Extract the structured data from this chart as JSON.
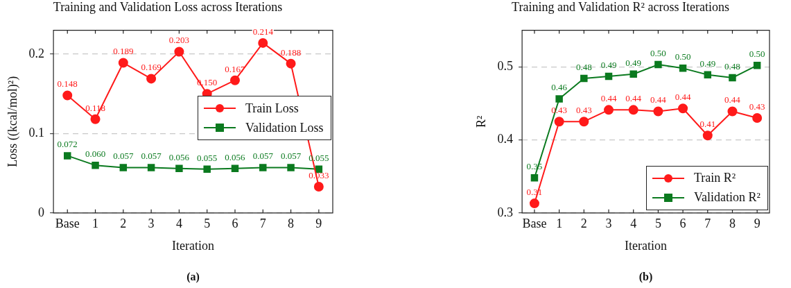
{
  "chart_data": [
    {
      "type": "line",
      "title": "Training and Validation Loss across Iterations",
      "xlabel": "Iteration",
      "ylabel": "Loss ((kcal/mol)²)",
      "categories": [
        "Base",
        "1",
        "2",
        "3",
        "4",
        "5",
        "6",
        "7",
        "8",
        "9"
      ],
      "series": [
        {
          "name": "Train Loss",
          "color": "#ff1a1a",
          "marker": "circle",
          "values": [
            0.148,
            0.118,
            0.189,
            0.169,
            0.203,
            0.15,
            0.167,
            0.214,
            0.188,
            0.033
          ],
          "value_labels": [
            "0.148",
            "0.118",
            "0.189",
            "0.169",
            "0.203",
            "0.150",
            "0.167",
            "0.214",
            "0.188",
            "0.033"
          ]
        },
        {
          "name": "Validation Loss",
          "color": "#0b7a1f",
          "marker": "square",
          "values": [
            0.072,
            0.06,
            0.057,
            0.057,
            0.056,
            0.055,
            0.056,
            0.057,
            0.057,
            0.055
          ],
          "value_labels": [
            "0.072",
            "0.060",
            "0.057",
            "0.057",
            "0.056",
            "0.055",
            "0.056",
            "0.057",
            "0.057",
            "0.055"
          ]
        }
      ],
      "ylim": [
        0,
        0.23
      ],
      "yticks": [
        0,
        0.1,
        0.2
      ],
      "grid": "y",
      "legend": "right",
      "line_style": "solid",
      "annotations": [
        "(a)"
      ]
    },
    {
      "type": "line",
      "title": "Training and Validation R² across Iterations",
      "xlabel": "Iteration",
      "ylabel": "R²",
      "categories": [
        "Base",
        "1",
        "2",
        "3",
        "4",
        "5",
        "6",
        "7",
        "8",
        "9"
      ],
      "series": [
        {
          "name": "Train R²",
          "color": "#ff1a1a",
          "marker": "circle",
          "values": [
            0.313,
            0.425,
            0.425,
            0.441,
            0.441,
            0.439,
            0.443,
            0.406,
            0.439,
            0.43
          ],
          "value_labels": [
            "0.31",
            "0.43",
            "0.43",
            "0.44",
            "0.44",
            "0.44",
            "0.44",
            "0.41",
            "0.44",
            "0.43"
          ]
        },
        {
          "name": "Validation R²",
          "color": "#0b7a1f",
          "marker": "square",
          "values": [
            0.348,
            0.456,
            0.484,
            0.487,
            0.49,
            0.503,
            0.498,
            0.489,
            0.485,
            0.502
          ],
          "value_labels": [
            "0.35",
            "0.46",
            "0.48",
            "0.49",
            "0.49",
            "0.50",
            "0.50",
            "0.49",
            "0.48",
            "0.50"
          ]
        }
      ],
      "ylim": [
        0.3,
        0.55
      ],
      "yticks": [
        0.3,
        0.4,
        0.5
      ],
      "grid": "y",
      "legend": "bottom right",
      "line_style": "solid",
      "annotations": [
        "(b)"
      ]
    }
  ]
}
